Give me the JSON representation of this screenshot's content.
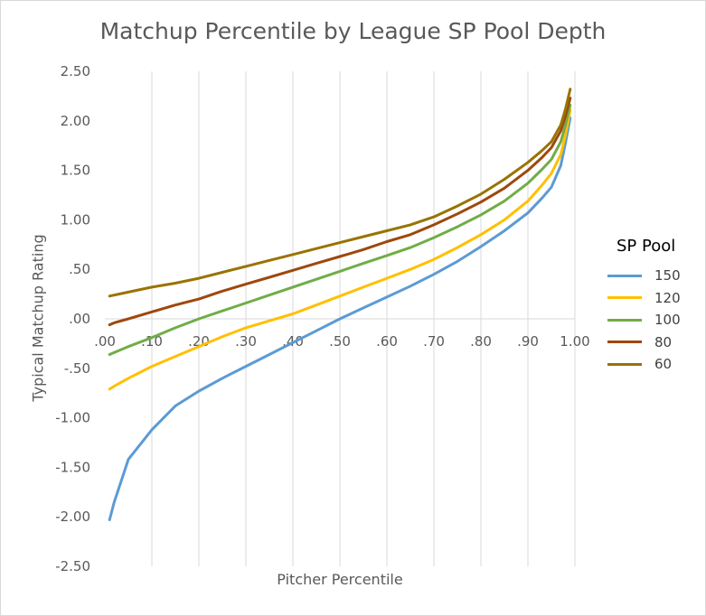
{
  "chart_data": {
    "type": "line",
    "title": "Matchup Percentile by League SP Pool Depth",
    "xlabel": "Pitcher Percentile",
    "ylabel": "Typical Matchup Rating",
    "xlim": [
      0.0,
      1.0
    ],
    "ylim": [
      -2.5,
      2.5
    ],
    "x_ticks": [
      ".00",
      ".10",
      ".20",
      ".30",
      ".40",
      ".50",
      ".60",
      ".70",
      ".80",
      ".90",
      "1.00"
    ],
    "y_ticks": [
      "2.50",
      "2.00",
      "1.50",
      "1.00",
      ".50",
      ".00",
      "-.50",
      "-1.00",
      "-1.50",
      "-2.00",
      "-2.50"
    ],
    "grid": "vertical",
    "legend": {
      "title": "SP Pool",
      "position": "right"
    },
    "x": [
      0.01,
      0.02,
      0.05,
      0.1,
      0.15,
      0.2,
      0.25,
      0.3,
      0.35,
      0.4,
      0.45,
      0.5,
      0.55,
      0.6,
      0.65,
      0.7,
      0.75,
      0.8,
      0.85,
      0.9,
      0.93,
      0.95,
      0.97,
      0.98,
      0.99
    ],
    "series": [
      {
        "name": "150",
        "color": "#5b9bd5",
        "values": [
          -2.03,
          -1.85,
          -1.42,
          -1.12,
          -0.88,
          -0.73,
          -0.6,
          -0.48,
          -0.36,
          -0.24,
          -0.12,
          0.0,
          0.11,
          0.22,
          0.33,
          0.45,
          0.58,
          0.73,
          0.89,
          1.07,
          1.22,
          1.33,
          1.55,
          1.78,
          2.03
        ]
      },
      {
        "name": "120",
        "color": "#ffc000",
        "values": [
          -0.71,
          -0.68,
          -0.6,
          -0.48,
          -0.38,
          -0.28,
          -0.18,
          -0.09,
          -0.02,
          0.05,
          0.14,
          0.23,
          0.32,
          0.41,
          0.5,
          0.6,
          0.72,
          0.85,
          1.0,
          1.19,
          1.35,
          1.47,
          1.66,
          1.86,
          2.11
        ]
      },
      {
        "name": "100",
        "color": "#70ad47",
        "values": [
          -0.36,
          -0.34,
          -0.28,
          -0.19,
          -0.09,
          0.0,
          0.08,
          0.16,
          0.24,
          0.32,
          0.4,
          0.48,
          0.56,
          0.64,
          0.72,
          0.82,
          0.93,
          1.05,
          1.19,
          1.37,
          1.51,
          1.61,
          1.79,
          1.96,
          2.16
        ]
      },
      {
        "name": "80",
        "color": "#9e480e",
        "values": [
          -0.06,
          -0.04,
          0.0,
          0.07,
          0.14,
          0.2,
          0.28,
          0.35,
          0.42,
          0.49,
          0.56,
          0.63,
          0.7,
          0.78,
          0.85,
          0.95,
          1.06,
          1.18,
          1.32,
          1.5,
          1.63,
          1.73,
          1.9,
          2.05,
          2.23
        ]
      },
      {
        "name": "60",
        "color": "#997300",
        "values": [
          0.23,
          0.24,
          0.27,
          0.32,
          0.36,
          0.41,
          0.47,
          0.53,
          0.59,
          0.65,
          0.71,
          0.77,
          0.83,
          0.89,
          0.95,
          1.03,
          1.14,
          1.26,
          1.41,
          1.58,
          1.7,
          1.79,
          1.96,
          2.12,
          2.32
        ]
      }
    ]
  }
}
